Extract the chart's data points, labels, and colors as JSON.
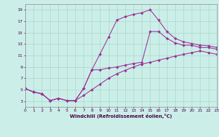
{
  "bg_color": "#cceee8",
  "grid_color": "#aaddcc",
  "line_color": "#993399",
  "xlabel": "Windchill (Refroidissement éolien,°C)",
  "xlim": [
    0,
    23
  ],
  "ylim": [
    2.0,
    20.0
  ],
  "xticks": [
    0,
    1,
    2,
    3,
    4,
    5,
    6,
    7,
    8,
    9,
    10,
    11,
    12,
    13,
    14,
    15,
    16,
    17,
    18,
    19,
    20,
    21,
    22,
    23
  ],
  "yticks": [
    3,
    5,
    7,
    9,
    11,
    13,
    15,
    17,
    19
  ],
  "line1_x": [
    0,
    1,
    2,
    3,
    4,
    5,
    6,
    7,
    8,
    9,
    10,
    11,
    12,
    13,
    14,
    15,
    16,
    17,
    18,
    19,
    20,
    21,
    22,
    23
  ],
  "line1_y": [
    5.2,
    4.6,
    4.3,
    3.1,
    3.5,
    3.1,
    3.1,
    4.0,
    5.0,
    6.0,
    7.0,
    7.8,
    8.4,
    9.0,
    9.5,
    9.8,
    10.2,
    10.5,
    10.9,
    11.2,
    11.5,
    11.8,
    11.5,
    11.2
  ],
  "line2_x": [
    0,
    1,
    2,
    3,
    4,
    5,
    6,
    7,
    8,
    9,
    10,
    11,
    12,
    13,
    14,
    15,
    16,
    17,
    18,
    19,
    20,
    21,
    22,
    23
  ],
  "line2_y": [
    5.2,
    4.6,
    4.3,
    3.1,
    3.5,
    3.1,
    3.1,
    5.2,
    8.5,
    11.3,
    14.2,
    17.2,
    17.8,
    18.2,
    18.5,
    19.0,
    17.2,
    15.2,
    14.0,
    13.4,
    13.1,
    12.8,
    12.7,
    12.4
  ],
  "line3_x": [
    0,
    1,
    2,
    3,
    4,
    5,
    6,
    7,
    8,
    9,
    10,
    11,
    12,
    13,
    14,
    15,
    16,
    17,
    18,
    19,
    20,
    21,
    22,
    23
  ],
  "line3_y": [
    5.2,
    4.6,
    4.3,
    3.1,
    3.5,
    3.1,
    3.1,
    5.2,
    8.5,
    8.5,
    8.8,
    9.0,
    9.3,
    9.6,
    9.8,
    15.2,
    15.2,
    14.0,
    13.2,
    12.8,
    12.8,
    12.4,
    12.4,
    12.1
  ]
}
